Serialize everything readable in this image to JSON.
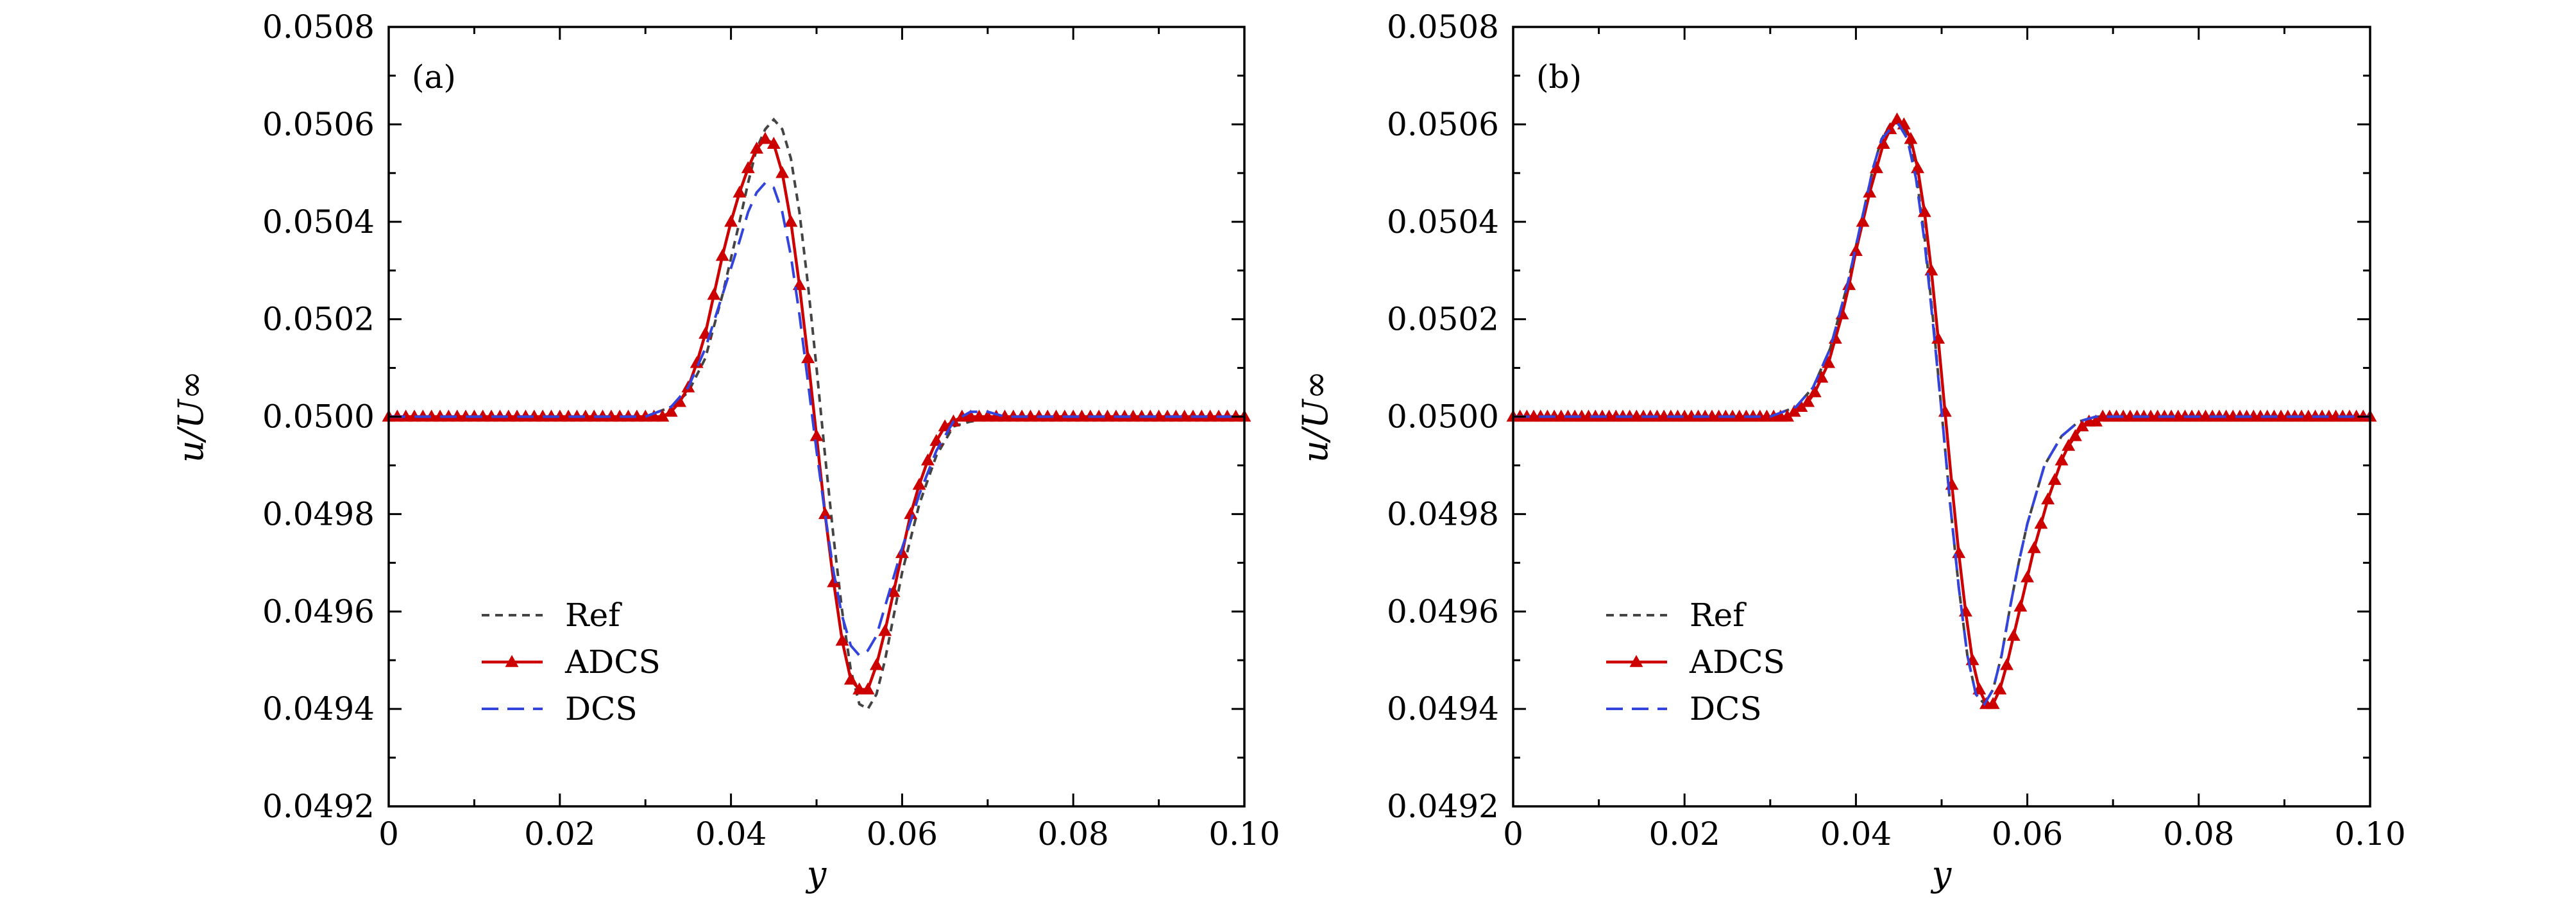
{
  "chart_data": [
    {
      "type": "line",
      "panel_label": "(a)",
      "xlabel": "y",
      "ylabel": "u/U∞",
      "xlim": [
        0,
        0.1
      ],
      "ylim": [
        0.0492,
        0.0508
      ],
      "xticks": [
        0,
        0.02,
        0.04,
        0.06,
        0.08,
        0.1
      ],
      "xtick_labels": [
        "0",
        "0.02",
        "0.04",
        "0.06",
        "0.08",
        "0.10"
      ],
      "yticks": [
        0.0492,
        0.0494,
        0.0496,
        0.0498,
        0.05,
        0.0502,
        0.0504,
        0.0506,
        0.0508
      ],
      "ytick_labels": [
        "0.0492",
        "0.0494",
        "0.0496",
        "0.0498",
        "0.0500",
        "0.0502",
        "0.0504",
        "0.0506",
        "0.0508"
      ],
      "legend_position": "lower-left",
      "series": [
        {
          "name": "Ref",
          "color": "#444444",
          "style": "dotted",
          "x": [
            0,
            0.025,
            0.03,
            0.033,
            0.035,
            0.037,
            0.039,
            0.041,
            0.042,
            0.043,
            0.044,
            0.045,
            0.046,
            0.047,
            0.048,
            0.049,
            0.05,
            0.051,
            0.052,
            0.053,
            0.054,
            0.055,
            0.056,
            0.057,
            0.058,
            0.059,
            0.06,
            0.062,
            0.064,
            0.066,
            0.068,
            0.072,
            0.1
          ],
          "y": [
            0.05,
            0.05,
            0.05,
            0.05002,
            0.05005,
            0.05012,
            0.05025,
            0.0504,
            0.05048,
            0.05055,
            0.05059,
            0.05061,
            0.05059,
            0.05053,
            0.05042,
            0.05027,
            0.0501,
            0.04992,
            0.04975,
            0.0496,
            0.04948,
            0.04941,
            0.0494,
            0.04943,
            0.0495,
            0.04959,
            0.04968,
            0.04982,
            0.04992,
            0.04998,
            0.04999,
            0.05,
            0.05
          ]
        },
        {
          "name": "ADCS",
          "color": "#cc0000",
          "style": "solid-triangles",
          "x": [
            0,
            0.001,
            0.002,
            0.003,
            0.004,
            0.005,
            0.006,
            0.007,
            0.008,
            0.009,
            0.01,
            0.011,
            0.012,
            0.013,
            0.014,
            0.015,
            0.016,
            0.017,
            0.018,
            0.019,
            0.02,
            0.021,
            0.022,
            0.023,
            0.024,
            0.025,
            0.026,
            0.027,
            0.028,
            0.029,
            0.03,
            0.031,
            0.032,
            0.033,
            0.034,
            0.035,
            0.036,
            0.037,
            0.038,
            0.039,
            0.04,
            0.041,
            0.042,
            0.043,
            0.044,
            0.045,
            0.046,
            0.047,
            0.048,
            0.049,
            0.05,
            0.051,
            0.052,
            0.053,
            0.054,
            0.055,
            0.056,
            0.057,
            0.058,
            0.059,
            0.06,
            0.061,
            0.062,
            0.063,
            0.064,
            0.065,
            0.066,
            0.067,
            0.068,
            0.069,
            0.07,
            0.071,
            0.072,
            0.073,
            0.074,
            0.075,
            0.076,
            0.077,
            0.078,
            0.079,
            0.08,
            0.081,
            0.082,
            0.083,
            0.084,
            0.085,
            0.086,
            0.087,
            0.088,
            0.089,
            0.09,
            0.091,
            0.092,
            0.093,
            0.094,
            0.095,
            0.096,
            0.097,
            0.098,
            0.099,
            0.1
          ],
          "y": [
            0.05,
            0.05,
            0.05,
            0.05,
            0.05,
            0.05,
            0.05,
            0.05,
            0.05,
            0.05,
            0.05,
            0.05,
            0.05,
            0.05,
            0.05,
            0.05,
            0.05,
            0.05,
            0.05,
            0.05,
            0.05,
            0.05,
            0.05,
            0.05,
            0.05,
            0.05,
            0.05,
            0.05,
            0.05,
            0.05,
            0.05,
            0.05,
            0.05,
            0.05001,
            0.05003,
            0.05006,
            0.05011,
            0.05017,
            0.05025,
            0.05033,
            0.0504,
            0.05046,
            0.05051,
            0.05055,
            0.05057,
            0.05056,
            0.0505,
            0.0504,
            0.05027,
            0.05012,
            0.04996,
            0.0498,
            0.04966,
            0.04954,
            0.04946,
            0.04944,
            0.04944,
            0.04949,
            0.04956,
            0.04964,
            0.04972,
            0.0498,
            0.04986,
            0.04991,
            0.04995,
            0.04998,
            0.04999,
            0.05,
            0.05,
            0.05,
            0.05,
            0.05,
            0.05,
            0.05,
            0.05,
            0.05,
            0.05,
            0.05,
            0.05,
            0.05,
            0.05,
            0.05,
            0.05,
            0.05,
            0.05,
            0.05,
            0.05,
            0.05,
            0.05,
            0.05,
            0.05,
            0.05,
            0.05,
            0.05,
            0.05,
            0.05,
            0.05,
            0.05,
            0.05,
            0.05,
            0.05
          ]
        },
        {
          "name": "DCS",
          "color": "#3344dd",
          "style": "dashed",
          "x": [
            0,
            0.025,
            0.03,
            0.033,
            0.035,
            0.037,
            0.039,
            0.041,
            0.042,
            0.043,
            0.044,
            0.045,
            0.046,
            0.047,
            0.048,
            0.049,
            0.05,
            0.051,
            0.052,
            0.053,
            0.054,
            0.055,
            0.056,
            0.057,
            0.058,
            0.059,
            0.06,
            0.062,
            0.064,
            0.066,
            0.068,
            0.07,
            0.072,
            0.1
          ],
          "y": [
            0.05,
            0.05,
            0.05,
            0.05002,
            0.05006,
            0.05014,
            0.05025,
            0.05036,
            0.05042,
            0.05046,
            0.05048,
            0.05047,
            0.05042,
            0.05033,
            0.05021,
            0.05007,
            0.04993,
            0.0498,
            0.04968,
            0.04959,
            0.04953,
            0.04951,
            0.04952,
            0.04955,
            0.04961,
            0.04967,
            0.04973,
            0.04984,
            0.04993,
            0.04999,
            0.05001,
            0.05001,
            0.05,
            0.05
          ]
        }
      ]
    },
    {
      "type": "line",
      "panel_label": "(b)",
      "xlabel": "y",
      "ylabel": "u/U∞",
      "xlim": [
        0,
        0.1
      ],
      "ylim": [
        0.0492,
        0.0508
      ],
      "xticks": [
        0,
        0.02,
        0.04,
        0.06,
        0.08,
        0.1
      ],
      "xtick_labels": [
        "0",
        "0.02",
        "0.04",
        "0.06",
        "0.08",
        "0.10"
      ],
      "yticks": [
        0.0492,
        0.0494,
        0.0496,
        0.0498,
        0.05,
        0.0502,
        0.0504,
        0.0506,
        0.0508
      ],
      "ytick_labels": [
        "0.0492",
        "0.0494",
        "0.0496",
        "0.0498",
        "0.0500",
        "0.0502",
        "0.0504",
        "0.0506",
        "0.0508"
      ],
      "legend_position": "lower-left",
      "series": [
        {
          "name": "Ref",
          "color": "#444444",
          "style": "dotted",
          "x": [
            0,
            0.03,
            0.033,
            0.035,
            0.037,
            0.039,
            0.041,
            0.042,
            0.043,
            0.044,
            0.045,
            0.046,
            0.047,
            0.048,
            0.049,
            0.05,
            0.051,
            0.052,
            0.053,
            0.054,
            0.055,
            0.056,
            0.057,
            0.058,
            0.059,
            0.06,
            0.062,
            0.064,
            0.066,
            0.068,
            0.07,
            0.1
          ],
          "y": [
            0.05,
            0.05,
            0.05002,
            0.05006,
            0.05014,
            0.05027,
            0.05043,
            0.05051,
            0.05057,
            0.0506,
            0.05061,
            0.05058,
            0.0505,
            0.05037,
            0.0502,
            0.05001,
            0.04982,
            0.04965,
            0.04951,
            0.04943,
            0.04941,
            0.04944,
            0.04951,
            0.04961,
            0.0497,
            0.04978,
            0.0499,
            0.04996,
            0.04999,
            0.05,
            0.05,
            0.05
          ]
        },
        {
          "name": "ADCS",
          "color": "#cc0000",
          "style": "solid-triangles",
          "x": [
            0,
            0.0008,
            0.0016,
            0.0024,
            0.0032,
            0.004,
            0.0048,
            0.0056,
            0.0064,
            0.0072,
            0.008,
            0.0088,
            0.0096,
            0.0104,
            0.0112,
            0.012,
            0.0128,
            0.0136,
            0.0144,
            0.0152,
            0.016,
            0.0168,
            0.0176,
            0.0184,
            0.0192,
            0.02,
            0.0208,
            0.0216,
            0.0224,
            0.0232,
            0.024,
            0.0248,
            0.0256,
            0.0264,
            0.0272,
            0.028,
            0.0288,
            0.0296,
            0.0304,
            0.0312,
            0.032,
            0.0328,
            0.0336,
            0.0344,
            0.0352,
            0.036,
            0.0368,
            0.0376,
            0.0384,
            0.0392,
            0.04,
            0.0408,
            0.0416,
            0.0424,
            0.0432,
            0.044,
            0.0448,
            0.0456,
            0.0464,
            0.0472,
            0.048,
            0.0488,
            0.0496,
            0.0504,
            0.0512,
            0.052,
            0.0528,
            0.0536,
            0.0544,
            0.0552,
            0.056,
            0.0568,
            0.0576,
            0.0584,
            0.0592,
            0.06,
            0.0608,
            0.0616,
            0.0624,
            0.0632,
            0.064,
            0.0648,
            0.0656,
            0.0664,
            0.0672,
            0.068,
            0.0688,
            0.0696,
            0.0704,
            0.0712,
            0.072,
            0.0728,
            0.0736,
            0.0744,
            0.0752,
            0.076,
            0.0768,
            0.0776,
            0.0784,
            0.0792,
            0.08,
            0.0808,
            0.0816,
            0.0824,
            0.0832,
            0.084,
            0.0848,
            0.0856,
            0.0864,
            0.0872,
            0.088,
            0.0888,
            0.0896,
            0.0904,
            0.0912,
            0.092,
            0.0928,
            0.0936,
            0.0944,
            0.0952,
            0.096,
            0.0968,
            0.0976,
            0.0984,
            0.0992,
            0.1
          ],
          "y": [
            0.05,
            0.05,
            0.05,
            0.05,
            0.05,
            0.05,
            0.05,
            0.05,
            0.05,
            0.05,
            0.05,
            0.05,
            0.05,
            0.05,
            0.05,
            0.05,
            0.05,
            0.05,
            0.05,
            0.05,
            0.05,
            0.05,
            0.05,
            0.05,
            0.05,
            0.05,
            0.05,
            0.05,
            0.05,
            0.05,
            0.05,
            0.05,
            0.05,
            0.05,
            0.05,
            0.05,
            0.05,
            0.05,
            0.05,
            0.05,
            0.05,
            0.05001,
            0.05002,
            0.05003,
            0.05005,
            0.05008,
            0.05011,
            0.05016,
            0.05021,
            0.05027,
            0.05034,
            0.0504,
            0.05046,
            0.05051,
            0.05056,
            0.05059,
            0.05061,
            0.0506,
            0.05057,
            0.05051,
            0.05042,
            0.0503,
            0.05016,
            0.05001,
            0.04986,
            0.04972,
            0.0496,
            0.0495,
            0.04944,
            0.04941,
            0.04941,
            0.04944,
            0.04949,
            0.04955,
            0.04961,
            0.04967,
            0.04973,
            0.04978,
            0.04983,
            0.04987,
            0.04991,
            0.04994,
            0.04996,
            0.04998,
            0.04999,
            0.04999,
            0.05,
            0.05,
            0.05,
            0.05,
            0.05,
            0.05,
            0.05,
            0.05,
            0.05,
            0.05,
            0.05,
            0.05,
            0.05,
            0.05,
            0.05,
            0.05,
            0.05,
            0.05,
            0.05,
            0.05,
            0.05,
            0.05,
            0.05,
            0.05,
            0.05,
            0.05,
            0.05,
            0.05,
            0.05,
            0.05,
            0.05,
            0.05,
            0.05,
            0.05,
            0.05,
            0.05,
            0.05,
            0.05,
            0.05,
            0.05
          ]
        },
        {
          "name": "DCS",
          "color": "#3344dd",
          "style": "dashed",
          "x": [
            0,
            0.03,
            0.033,
            0.035,
            0.037,
            0.039,
            0.041,
            0.042,
            0.043,
            0.044,
            0.045,
            0.046,
            0.047,
            0.048,
            0.049,
            0.05,
            0.051,
            0.052,
            0.053,
            0.054,
            0.055,
            0.056,
            0.057,
            0.058,
            0.059,
            0.06,
            0.062,
            0.064,
            0.066,
            0.068,
            0.07,
            0.1
          ],
          "y": [
            0.05,
            0.05,
            0.05002,
            0.05006,
            0.05014,
            0.05027,
            0.05043,
            0.05051,
            0.05057,
            0.05059,
            0.0506,
            0.05057,
            0.05049,
            0.05036,
            0.05019,
            0.05001,
            0.04982,
            0.04965,
            0.04951,
            0.04943,
            0.04941,
            0.04944,
            0.04951,
            0.04961,
            0.0497,
            0.04978,
            0.0499,
            0.04996,
            0.04999,
            0.05,
            0.05,
            0.05
          ]
        }
      ]
    }
  ]
}
